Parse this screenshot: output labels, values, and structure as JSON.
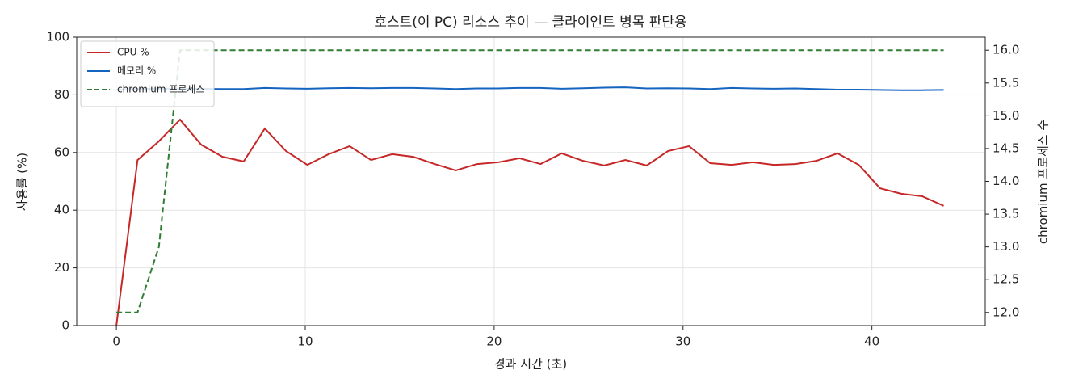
{
  "chart_data": {
    "type": "line",
    "title": "호스트(이 PC) 리소스 추이 — 클라이언트 병목 판단용",
    "x_label": "경과 시간 (초)",
    "y_label": "사용률 (%)",
    "y2_label": "chromium 프로세스 수",
    "x": [
      0,
      1.12,
      2.25,
      3.37,
      4.49,
      5.62,
      6.74,
      7.86,
      8.98,
      10.11,
      11.23,
      12.35,
      13.48,
      14.6,
      15.72,
      16.85,
      17.97,
      19.09,
      20.21,
      21.34,
      22.46,
      23.58,
      24.71,
      25.83,
      26.95,
      28.08,
      29.2,
      30.32,
      31.44,
      32.57,
      33.69,
      34.81,
      35.94,
      37.06,
      38.18,
      39.31,
      40.43,
      41.55,
      42.67,
      43.8
    ],
    "series": [
      {
        "name": "CPU %",
        "color": "#c62828",
        "line_style": "solid",
        "axis": "y",
        "values": [
          0,
          57.4,
          63.9,
          71.4,
          62.7,
          58.5,
          56.9,
          68.3,
          60.5,
          55.7,
          59.4,
          62.2,
          57.4,
          59.4,
          58.5,
          56.0,
          53.8,
          56.0,
          56.6,
          58.0,
          56.0,
          59.7,
          57.1,
          55.5,
          57.4,
          55.5,
          60.5,
          62.2,
          56.3,
          55.7,
          56.6,
          55.7,
          56.0,
          57.1,
          59.7,
          55.7,
          47.6,
          45.7,
          44.8,
          41.5
        ]
      },
      {
        "name": "메모리 %",
        "color": "#1565c0",
        "line_style": "solid",
        "axis": "y",
        "values": [
          81.8,
          82.0,
          82.1,
          82.1,
          82.1,
          82.0,
          82.0,
          82.4,
          82.2,
          82.1,
          82.3,
          82.4,
          82.3,
          82.4,
          82.4,
          82.2,
          82.0,
          82.2,
          82.2,
          82.4,
          82.4,
          82.1,
          82.3,
          82.5,
          82.6,
          82.2,
          82.3,
          82.2,
          82.0,
          82.4,
          82.2,
          82.1,
          82.2,
          82.0,
          81.8,
          81.8,
          81.7,
          81.6,
          81.6,
          81.7
        ]
      },
      {
        "name": "chromium 프로세스",
        "color": "#2e7d32",
        "line_style": "dashed",
        "axis": "y2",
        "values": [
          12,
          12,
          13,
          16,
          16,
          16,
          16,
          16,
          16,
          16,
          16,
          16,
          16,
          16,
          16,
          16,
          16,
          16,
          16,
          16,
          16,
          16,
          16,
          16,
          16,
          16,
          16,
          16,
          16,
          16,
          16,
          16,
          16,
          16,
          16,
          16,
          16,
          16,
          16,
          16
        ]
      }
    ],
    "xlim": [
      -2.1,
      46
    ],
    "xticks": [
      0,
      10,
      20,
      30,
      40
    ],
    "ylim": [
      0,
      100
    ],
    "yticks": [
      0,
      20,
      40,
      60,
      80,
      100
    ],
    "y2lim": [
      11.8,
      16.2
    ],
    "y2ticks": [
      {
        "value": 12,
        "label": "12.0"
      },
      12.5,
      {
        "value": 13,
        "label": "13.0"
      },
      13.5,
      {
        "value": 14,
        "label": "14.0"
      },
      14.5,
      {
        "value": 15,
        "label": "15.0"
      },
      15.5,
      {
        "value": 16,
        "label": "16.0"
      }
    ],
    "grid": true,
    "legend": "upper left"
  }
}
